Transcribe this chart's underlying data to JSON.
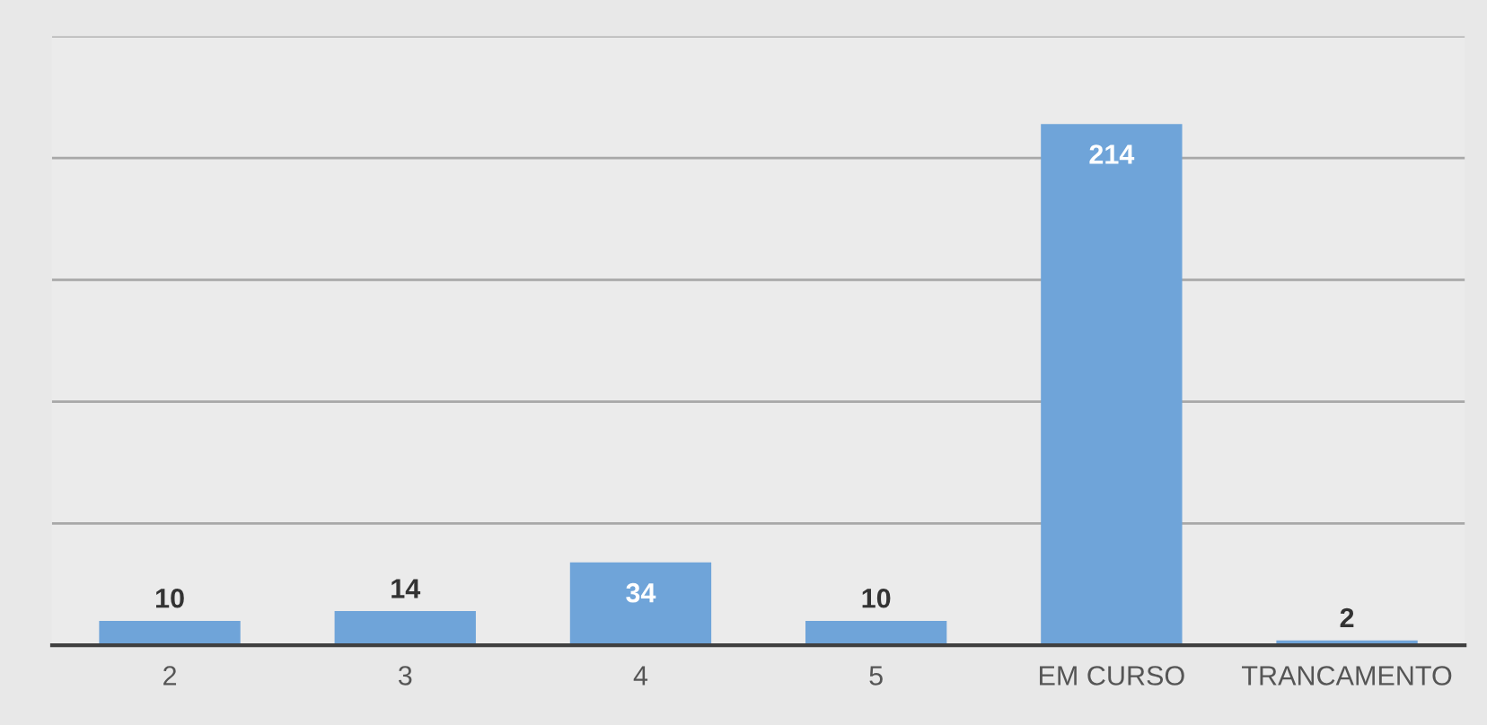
{
  "chart_data": {
    "type": "bar",
    "categories": [
      "2",
      "3",
      "4",
      "5",
      "EM CURSO",
      "TRANCAMENTO"
    ],
    "values": [
      10,
      14,
      34,
      10,
      214,
      2
    ],
    "color": "#6fa4d9",
    "data_labels": true,
    "ylim": [
      0,
      250
    ],
    "yticks": [
      {
        "value": 0,
        "label": null
      },
      {
        "value": 50,
        "label": null
      },
      {
        "value": 100,
        "label": null
      },
      {
        "value": 150,
        "label": null
      },
      {
        "value": 200,
        "label": null
      },
      {
        "value": 250,
        "label": null
      }
    ],
    "tick_labels": "x",
    "grid": "y",
    "legend": false
  }
}
